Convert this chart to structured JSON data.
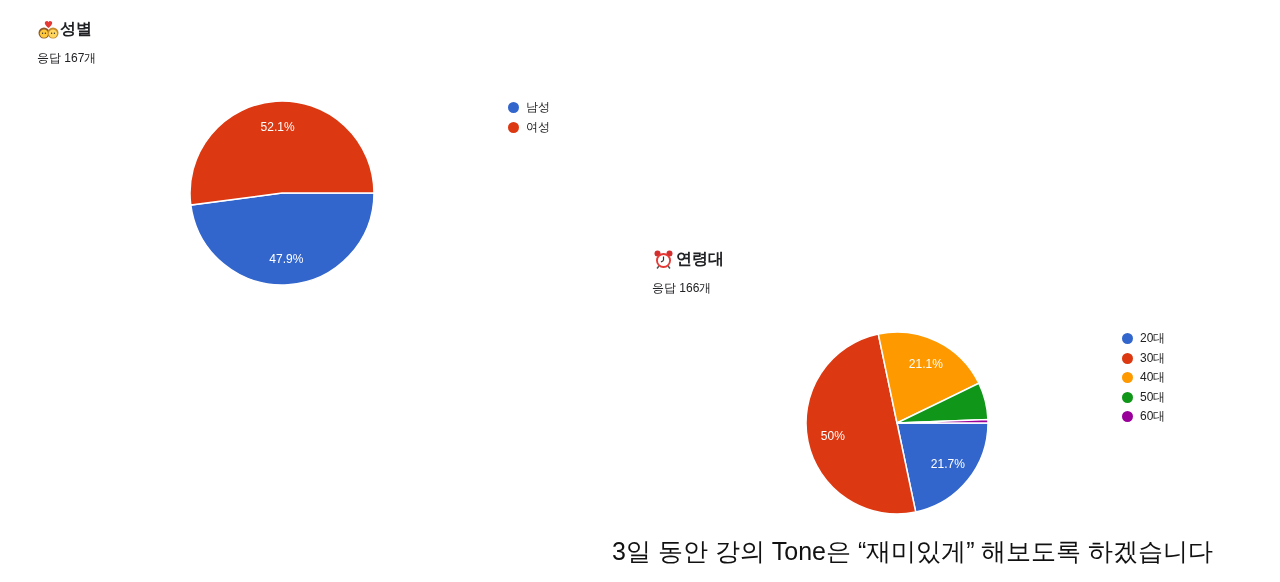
{
  "chart_data": [
    {
      "type": "pie",
      "title": "성별",
      "subtitle": "응답 167개",
      "categories": [
        "남성",
        "여성"
      ],
      "values": [
        47.9,
        52.1
      ],
      "colors": [
        "#3366cc",
        "#dc3912"
      ],
      "value_labels": [
        "47.9%",
        "52.1%"
      ],
      "legend": "top right"
    },
    {
      "type": "pie",
      "title": "연령대",
      "subtitle": "응답 166개",
      "categories": [
        "20대",
        "30대",
        "40대",
        "50대",
        "60대"
      ],
      "values": [
        21.7,
        50,
        21.1,
        6.6,
        0.6
      ],
      "colors": [
        "#3366cc",
        "#dc3912",
        "#ff9900",
        "#109618",
        "#990099"
      ],
      "value_labels": [
        "21.7%",
        "50%",
        "21.1%",
        null,
        null
      ],
      "legend": "top right",
      "annotations": [
        "3일 동안 강의 Tone은 “재미있게” 해보도록 하겠습니다"
      ]
    }
  ]
}
